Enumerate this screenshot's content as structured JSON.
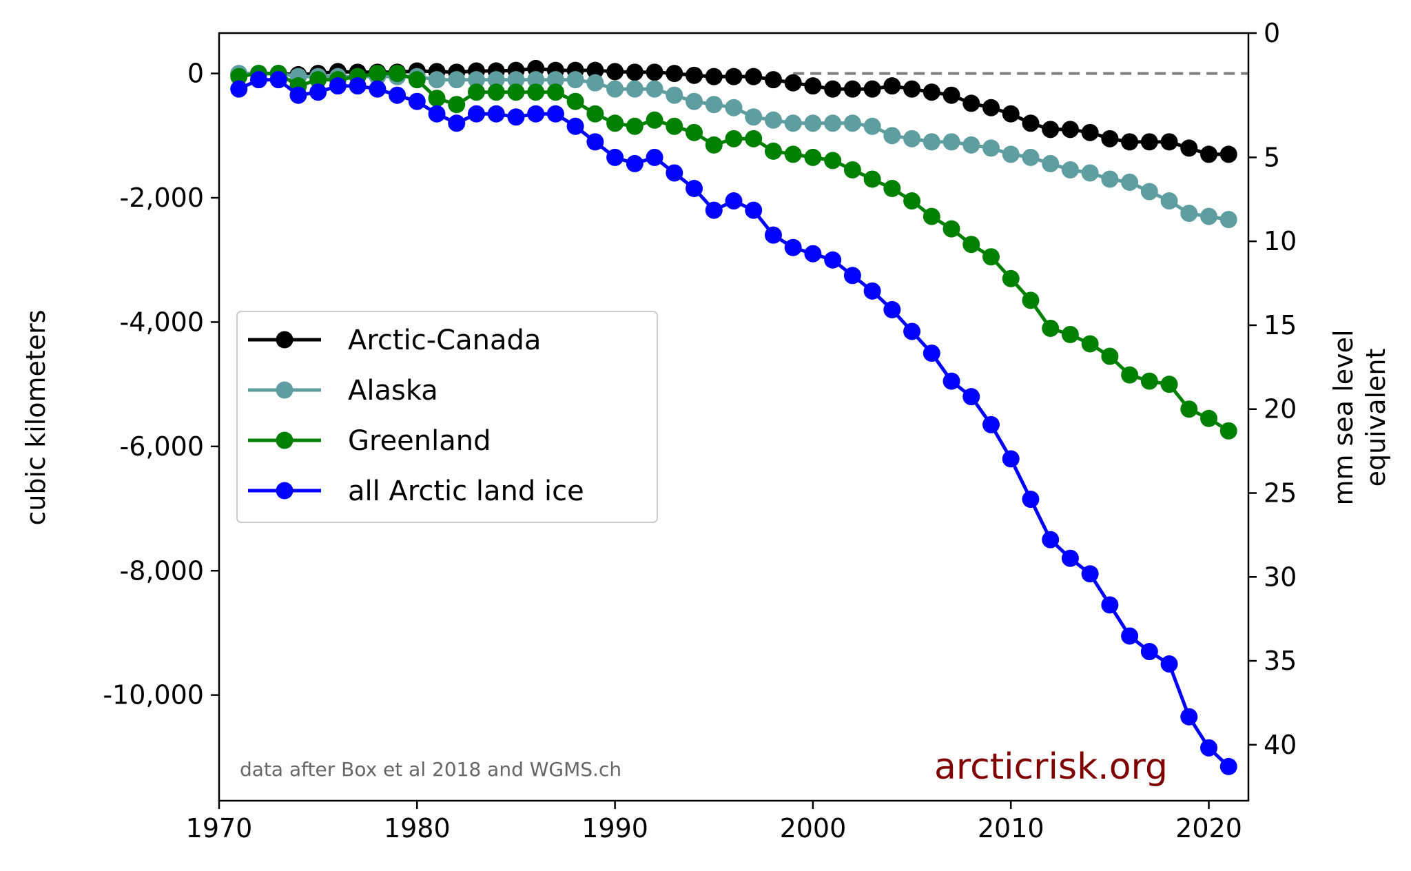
{
  "chart_data": {
    "type": "line",
    "x": [
      1971,
      1972,
      1973,
      1974,
      1975,
      1976,
      1977,
      1978,
      1979,
      1980,
      1981,
      1982,
      1983,
      1984,
      1985,
      1986,
      1987,
      1988,
      1989,
      1990,
      1991,
      1992,
      1993,
      1994,
      1995,
      1996,
      1997,
      1998,
      1999,
      2000,
      2001,
      2002,
      2003,
      2004,
      2005,
      2006,
      2007,
      2008,
      2009,
      2010,
      2011,
      2012,
      2013,
      2014,
      2015,
      2016,
      2017,
      2018,
      2019,
      2020,
      2021
    ],
    "series": [
      {
        "name": "Arctic-Canada",
        "color": "#000000",
        "values": [
          -20,
          0,
          0,
          -20,
          0,
          30,
          20,
          20,
          20,
          40,
          30,
          20,
          40,
          40,
          50,
          80,
          50,
          50,
          50,
          30,
          20,
          20,
          0,
          -30,
          -50,
          -50,
          -50,
          -100,
          -150,
          -200,
          -250,
          -250,
          -250,
          -200,
          -250,
          -300,
          -350,
          -480,
          -550,
          -650,
          -800,
          -900,
          -900,
          -950,
          -1050,
          -1100,
          -1100,
          -1100,
          -1200,
          -1300,
          -1300
        ]
      },
      {
        "name": "Alaska",
        "color": "#5f9ea0",
        "values": [
          0,
          0,
          0,
          -50,
          -50,
          -50,
          -50,
          -50,
          -50,
          -50,
          -100,
          -100,
          -100,
          -100,
          -100,
          -100,
          -100,
          -100,
          -150,
          -250,
          -250,
          -250,
          -350,
          -450,
          -500,
          -550,
          -700,
          -750,
          -800,
          -800,
          -800,
          -800,
          -850,
          -1000,
          -1050,
          -1100,
          -1100,
          -1150,
          -1200,
          -1300,
          -1350,
          -1450,
          -1550,
          -1600,
          -1700,
          -1750,
          -1900,
          -2050,
          -2250,
          -2300,
          -2350
        ]
      },
      {
        "name": "Greenland",
        "color": "#008000",
        "values": [
          -50,
          0,
          0,
          -200,
          -100,
          -100,
          -50,
          0,
          0,
          -100,
          -400,
          -500,
          -300,
          -300,
          -300,
          -300,
          -300,
          -450,
          -650,
          -800,
          -850,
          -750,
          -850,
          -950,
          -1150,
          -1050,
          -1050,
          -1250,
          -1300,
          -1350,
          -1400,
          -1550,
          -1700,
          -1850,
          -2050,
          -2300,
          -2500,
          -2750,
          -2950,
          -3300,
          -3650,
          -4100,
          -4200,
          -4350,
          -4550,
          -4850,
          -4950,
          -5000,
          -5400,
          -5550,
          -5750
        ]
      },
      {
        "name": "all Arctic land ice",
        "color": "#0000ff",
        "values": [
          -250,
          -100,
          -100,
          -350,
          -300,
          -200,
          -200,
          -250,
          -350,
          -450,
          -650,
          -800,
          -650,
          -650,
          -700,
          -650,
          -650,
          -850,
          -1100,
          -1350,
          -1450,
          -1350,
          -1600,
          -1850,
          -2200,
          -2050,
          -2200,
          -2600,
          -2800,
          -2900,
          -3000,
          -3250,
          -3500,
          -3800,
          -4150,
          -4500,
          -4950,
          -5200,
          -5650,
          -6200,
          -6850,
          -7500,
          -7800,
          -8050,
          -8550,
          -9050,
          -9300,
          -9500,
          -10350,
          -10850,
          -11150
        ]
      }
    ],
    "xlim": [
      1970,
      2022
    ],
    "ylim": [
      -11700,
      650
    ],
    "xticks": [
      1970,
      1980,
      1990,
      2000,
      2010,
      2020
    ],
    "yticks": [
      0,
      -2000,
      -4000,
      -6000,
      -8000,
      -10000
    ],
    "ytick_labels": [
      "0",
      "-2,000",
      "-4,000",
      "-6,000",
      "-8,000",
      "-10,000"
    ],
    "ylabel": "cubic kilometers",
    "y2label_line1": "mm sea level",
    "y2label_line2": "equivalent",
    "y2_scale": "0 mm at 0 km³, 40 mm at -10,800 km³",
    "y2ticks": [
      0,
      5,
      10,
      15,
      20,
      25,
      30,
      35,
      40
    ],
    "y2_zero_at": 650,
    "y2_km3_per_mm": -268,
    "zero_line": {
      "y": 0,
      "x_from": 1999,
      "color": "#808080",
      "style": "dashed"
    },
    "legend_position": "center-left",
    "note": "data after Box et al 2018 and WGMS.ch",
    "brand": "arcticrisk.org",
    "brand_color": "#800000"
  }
}
